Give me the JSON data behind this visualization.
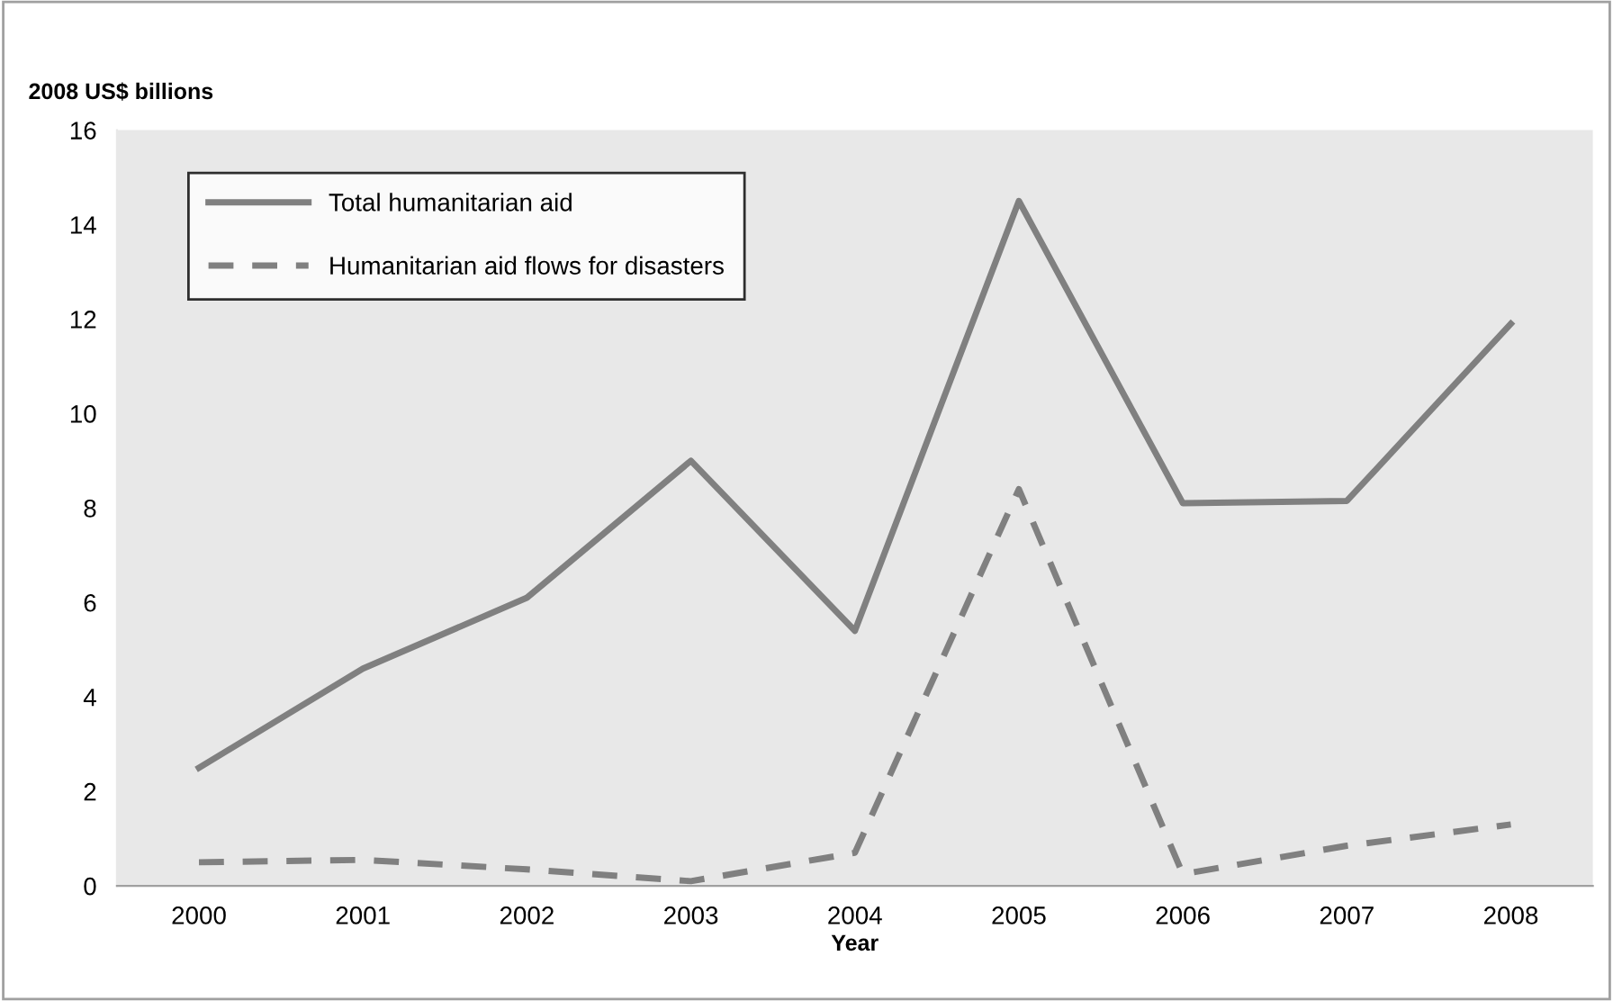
{
  "chart_data": {
    "type": "line",
    "ylabel": "2008 US$ billions",
    "xlabel": "Year",
    "categories": [
      "2000",
      "2001",
      "2002",
      "2003",
      "2004",
      "2005",
      "2006",
      "2007",
      "2008"
    ],
    "series": [
      {
        "name": "Total humanitarian aid",
        "color": "#808080",
        "line_style": "solid",
        "values": [
          2.5,
          4.6,
          6.1,
          9.0,
          5.4,
          14.5,
          8.1,
          8.15,
          11.9
        ]
      },
      {
        "name": "Humanitarian aid flows for disasters",
        "color": "#808080",
        "line_style": "dashed",
        "values": [
          0.5,
          0.55,
          0.35,
          0.1,
          0.7,
          8.4,
          0.25,
          0.85,
          1.3
        ]
      }
    ],
    "ylim": [
      0,
      16
    ],
    "yticks": [
      0,
      2,
      4,
      6,
      8,
      10,
      12,
      14,
      16
    ],
    "grid": false,
    "legend": "top left",
    "marker": "none"
  }
}
